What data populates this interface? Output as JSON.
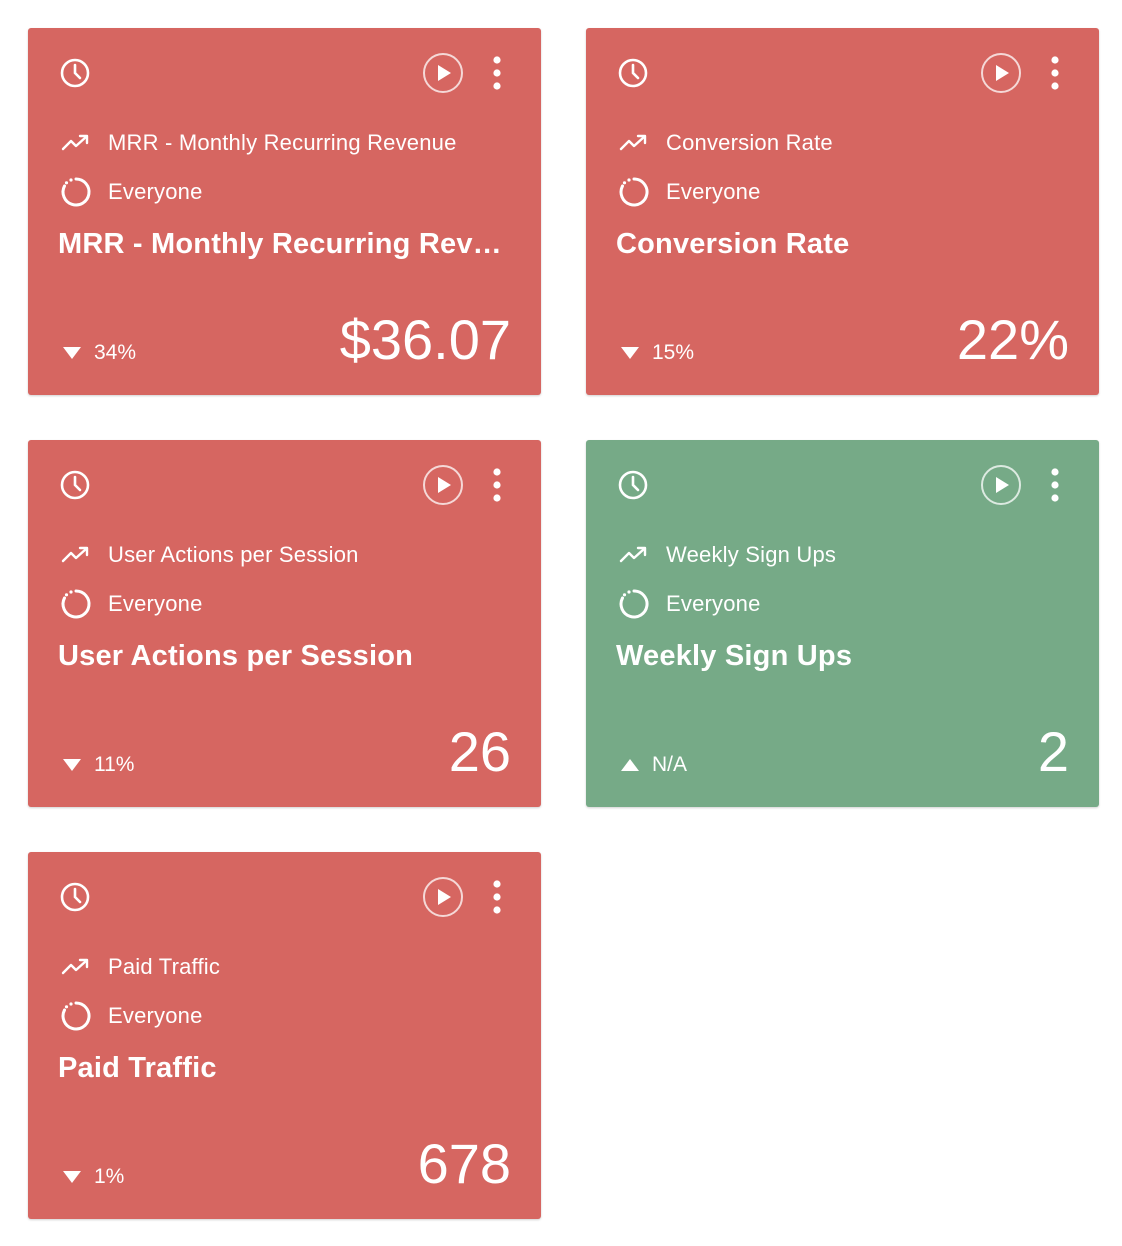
{
  "colors": {
    "negative": "#d66661",
    "positive": "#76aa87",
    "text": "#ffffff"
  },
  "cards": [
    {
      "status": "negative",
      "metric_label": "MRR - Monthly Recurring Revenue",
      "segment_label": "Everyone",
      "title": "MRR - Monthly Recurring Revenue",
      "change_direction": "down",
      "change_text": "34%",
      "value": "$36.07",
      "icons": {
        "clock": "clock-icon",
        "play": "play-icon",
        "more": "more-vertical-icon",
        "metric": "trend-up-icon",
        "segment": "segment-spinner-icon"
      }
    },
    {
      "status": "negative",
      "metric_label": "Conversion Rate",
      "segment_label": "Everyone",
      "title": "Conversion Rate",
      "change_direction": "down",
      "change_text": "15%",
      "value": "22%",
      "icons": {
        "clock": "clock-icon",
        "play": "play-icon",
        "more": "more-vertical-icon",
        "metric": "trend-up-icon",
        "segment": "segment-spinner-icon"
      }
    },
    {
      "status": "negative",
      "metric_label": "User Actions per Session",
      "segment_label": "Everyone",
      "title": "User Actions per Session",
      "change_direction": "down",
      "change_text": "11%",
      "value": "26",
      "icons": {
        "clock": "clock-icon",
        "play": "play-icon",
        "more": "more-vertical-icon",
        "metric": "trend-up-icon",
        "segment": "segment-spinner-icon"
      }
    },
    {
      "status": "positive",
      "metric_label": "Weekly Sign Ups",
      "segment_label": "Everyone",
      "title": "Weekly Sign Ups",
      "change_direction": "up",
      "change_text": "N/A",
      "value": "2",
      "icons": {
        "clock": "clock-icon",
        "play": "play-icon",
        "more": "more-vertical-icon",
        "metric": "trend-up-icon",
        "segment": "segment-spinner-icon"
      }
    },
    {
      "status": "negative",
      "metric_label": "Paid Traffic",
      "segment_label": "Everyone",
      "title": "Paid Traffic",
      "change_direction": "down",
      "change_text": "1%",
      "value": "678",
      "icons": {
        "clock": "clock-icon",
        "play": "play-icon",
        "more": "more-vertical-icon",
        "metric": "trend-up-icon",
        "segment": "segment-spinner-icon"
      }
    }
  ]
}
